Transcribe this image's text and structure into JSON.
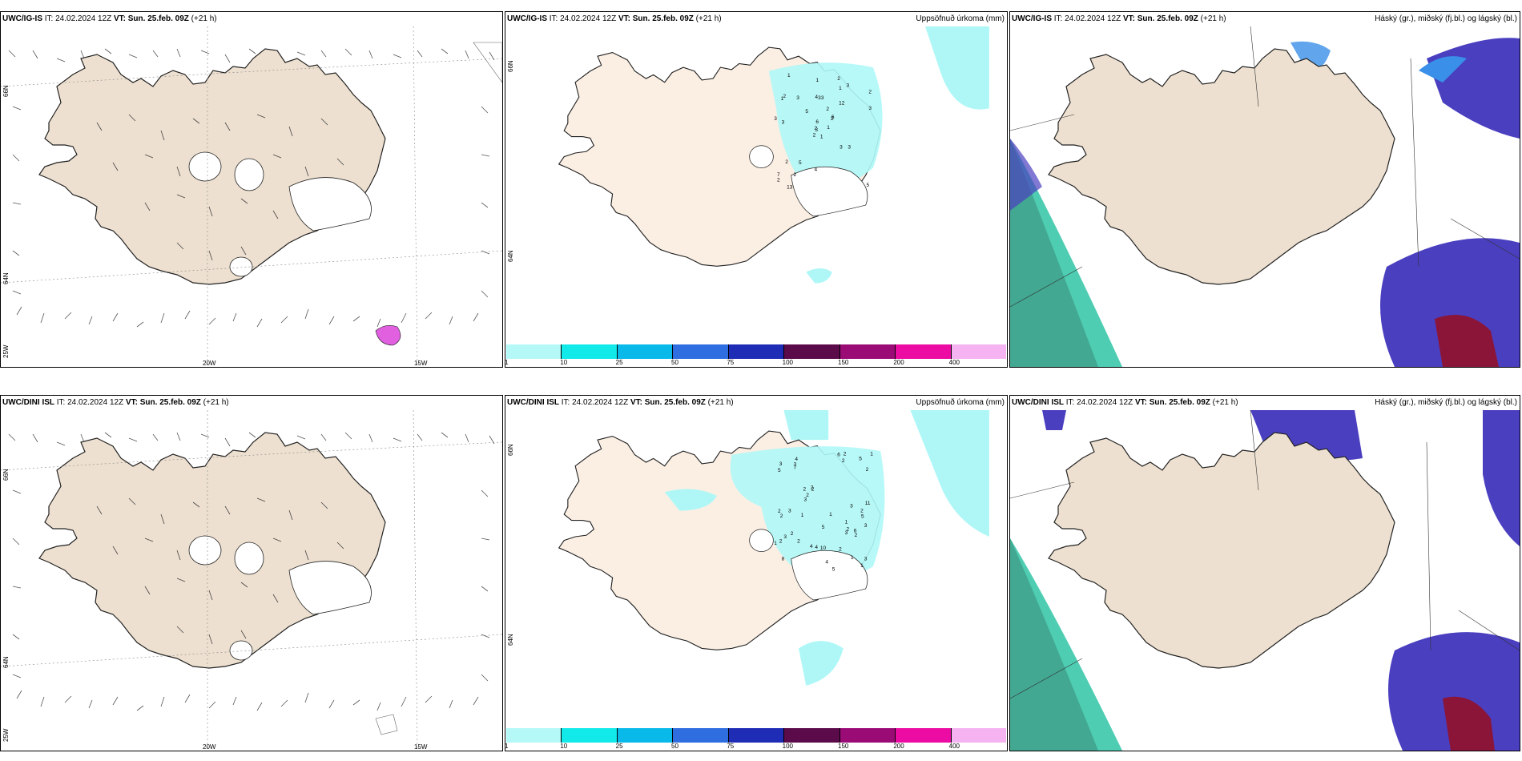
{
  "colors": {
    "land": "#ede0d0",
    "land_precip": "#fbefe4",
    "precip_light": "#aff7f7",
    "cloud_high": "#4a3fbf",
    "cloud_mid": "#3a8fe8",
    "cloud_low": "#22c1a0",
    "cloud_dark": "#8b1538",
    "icing_pink": "#e060e0"
  },
  "rows": [
    {
      "model": "UWC/IG-IS",
      "it_label": "IT:",
      "it_value": "24.02.2024 12Z",
      "vt_label": "VT:",
      "vt_value": "Sun. 25.feb. 09Z",
      "lead": "(+21 h)"
    },
    {
      "model": "UWC/DINI ISL",
      "it_label": "IT:",
      "it_value": "24.02.2024 12Z",
      "vt_label": "VT:",
      "vt_value": "Sun. 25.feb. 09Z",
      "lead": "(+21 h)"
    }
  ],
  "panel_titles": {
    "wind": "",
    "precip": "Uppsöfnuð úrkoma (mm)",
    "cloud": "Háský (gr.), miðský (fj.bl.) og lágský (bl.)"
  },
  "axis_labels": {
    "lon_20w": "20W",
    "lon_15w": "15W",
    "lat_66n": "66N",
    "lat_64n": "64N",
    "lat_25w": "25W"
  },
  "colorbar": {
    "ticks": [
      "1",
      "10",
      "25",
      "50",
      "75",
      "100",
      "150",
      "200",
      "400"
    ],
    "colors": [
      "#b5f8f8",
      "#12e9e9",
      "#08b9ea",
      "#2e6ee0",
      "#1f2cb6",
      "#5c0b4a",
      "#9a0b76",
      "#ec0ca3",
      "#f5b3f1"
    ]
  },
  "precip_values_top": [
    "1",
    "1",
    "3",
    "7",
    "2",
    "5",
    "2",
    "3",
    "1",
    "1",
    "1",
    "5",
    "3",
    "2",
    "2",
    "12",
    "13",
    "4",
    "2",
    "2",
    "5",
    "2",
    "2",
    "3",
    "6",
    "3",
    "2",
    "1",
    "3",
    "3",
    "3",
    "2",
    "4",
    "6",
    "3",
    "3"
  ],
  "precip_values_bottom": [
    "1",
    "5",
    "8",
    "4",
    "2",
    "1",
    "2",
    "2",
    "2",
    "5",
    "5",
    "2",
    "3",
    "3",
    "4",
    "11",
    "5",
    "1",
    "2",
    "2",
    "1",
    "5",
    "3",
    "3",
    "6",
    "3",
    "2",
    "2",
    "7",
    "3",
    "4",
    "2",
    "2",
    "1",
    "2",
    "2",
    "3",
    "3",
    "10",
    "3",
    "2",
    "2",
    "1",
    "4",
    "6",
    "2",
    "1"
  ]
}
